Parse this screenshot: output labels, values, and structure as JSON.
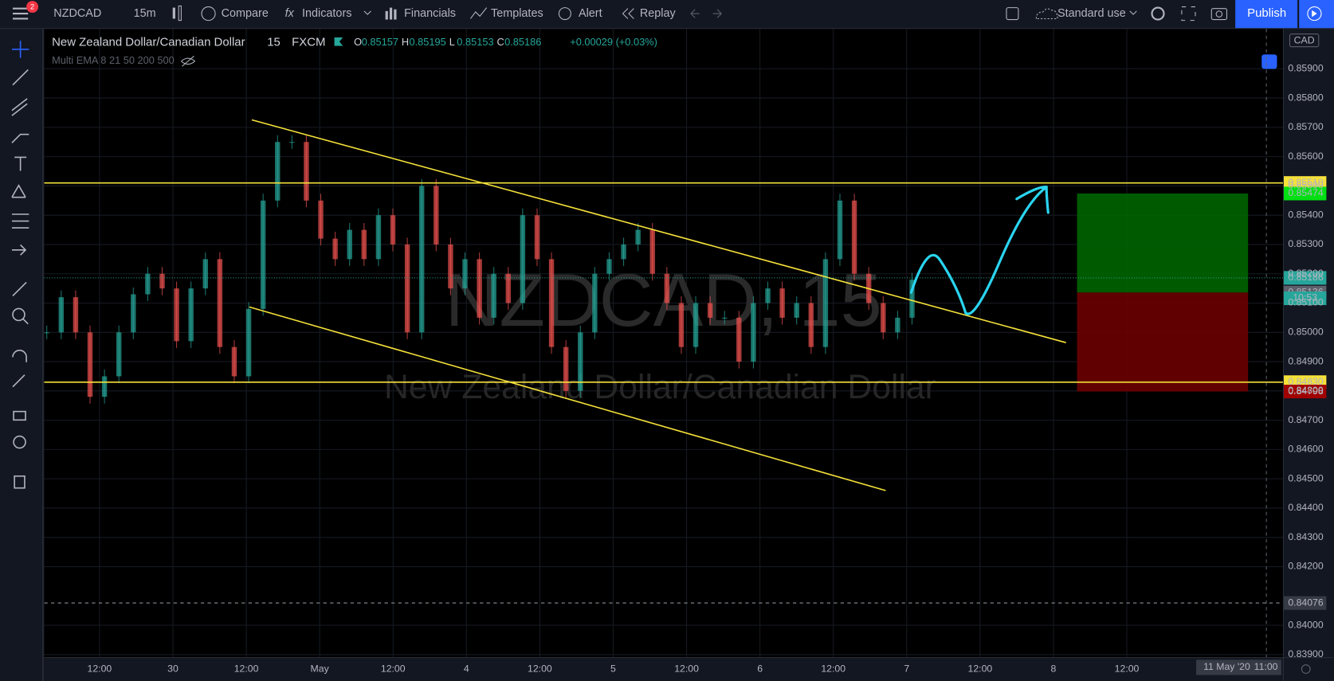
{
  "toolbar": {
    "symbol": "NZDCAD",
    "interval": "15m",
    "items": [
      "Compare",
      "Indicators",
      "Financials",
      "Templates",
      "Alert",
      "Replay"
    ],
    "layout": "Standard use",
    "publish": "Publish",
    "badge": "2"
  },
  "legend": {
    "title": "New Zealand Dollar/Canadian Dollar",
    "interval": "15",
    "source": "FXCM",
    "ohlc": [
      [
        "O",
        "0.85157"
      ],
      [
        "H",
        "0.85195"
      ],
      [
        "L",
        "0.85153"
      ],
      [
        "C",
        "0.85186"
      ]
    ],
    "change": "+0.00029 (+0.03%)",
    "indicator": "Multi EMA 8 21 50 200 500"
  },
  "watermark": {
    "symbol": "NZDCAD, 15",
    "name": "New Zealand Dollar/Canadian Dollar"
  },
  "chart_data": {
    "type": "candlestick",
    "currency": "CAD",
    "ylim": [
      0.83891,
      0.86036
    ],
    "yticks": [
      {
        "value": 0.859,
        "label": "0.85900"
      },
      {
        "value": 0.858,
        "label": "0.85800"
      },
      {
        "value": 0.857,
        "label": "0.85700"
      },
      {
        "value": 0.856,
        "label": "0.85600"
      },
      {
        "value": 0.855,
        "label": "0.85500"
      },
      {
        "value": 0.854,
        "label": "0.85400"
      },
      {
        "value": 0.853,
        "label": "0.85300"
      },
      {
        "value": 0.852,
        "label": "0.85200"
      },
      {
        "value": 0.851,
        "label": "0.85100"
      },
      {
        "value": 0.85,
        "label": "0.85000"
      },
      {
        "value": 0.849,
        "label": "0.84900"
      },
      {
        "value": 0.848,
        "label": "0.84800"
      },
      {
        "value": 0.847,
        "label": "0.84700"
      },
      {
        "value": 0.846,
        "label": "0.84600"
      },
      {
        "value": 0.845,
        "label": "0.84500"
      },
      {
        "value": 0.844,
        "label": "0.84400"
      },
      {
        "value": 0.843,
        "label": "0.84300"
      },
      {
        "value": 0.842,
        "label": "0.84200"
      },
      {
        "value": 0.84,
        "label": "0.84000"
      },
      {
        "value": 0.839,
        "label": "0.83900"
      }
    ],
    "categories": [
      "12:00",
      "30",
      "12:00",
      "May",
      "12:00",
      "4",
      "12:00",
      "5",
      "12:00",
      "6",
      "12:00",
      "7",
      "12:00",
      "8",
      "12:00"
    ],
    "date_label": "11 May '20",
    "time_label": "11:00",
    "closes": [
      0.85,
      0.8512,
      0.85,
      0.8478,
      0.8485,
      0.85,
      0.8513,
      0.852,
      0.8515,
      0.8497,
      0.8515,
      0.8525,
      0.8495,
      0.8485,
      0.8508,
      0.8545,
      0.8565,
      0.8565,
      0.8545,
      0.8532,
      0.8525,
      0.8535,
      0.8525,
      0.854,
      0.853,
      0.85,
      0.855,
      0.853,
      0.8515,
      0.8525,
      0.8505,
      0.852,
      0.851,
      0.854,
      0.8525,
      0.8495,
      0.848,
      0.85,
      0.852,
      0.8525,
      0.853,
      0.8535,
      0.852,
      0.851,
      0.8495,
      0.851,
      0.8505,
      0.8505,
      0.849,
      0.851,
      0.8515,
      0.8505,
      0.851,
      0.8495,
      0.8525,
      0.8545,
      0.852,
      0.851,
      0.85,
      0.8505,
      0.8518
    ],
    "up_color": "#26a69a",
    "down_color": "#ef5350",
    "levels": [
      {
        "value": 0.8551,
        "label": "0.85510",
        "color": "#f5e13a"
      },
      {
        "value": 0.85474,
        "label": "0.85474",
        "color": "#00e013"
      },
      {
        "value": 0.85186,
        "label": "0.85186",
        "color": "#26a69a"
      },
      {
        "value": 0.85136,
        "label": "0.85136",
        "color": "#5d606b"
      },
      {
        "value": 0.8483,
        "label": "0.84830",
        "color": "#f5e13a"
      },
      {
        "value": 0.84798,
        "label": "0.84798",
        "color": "#a10000"
      },
      {
        "value": 0.84076,
        "label": "0.84076",
        "color": "#363a45"
      }
    ],
    "countdown": "10:53"
  }
}
